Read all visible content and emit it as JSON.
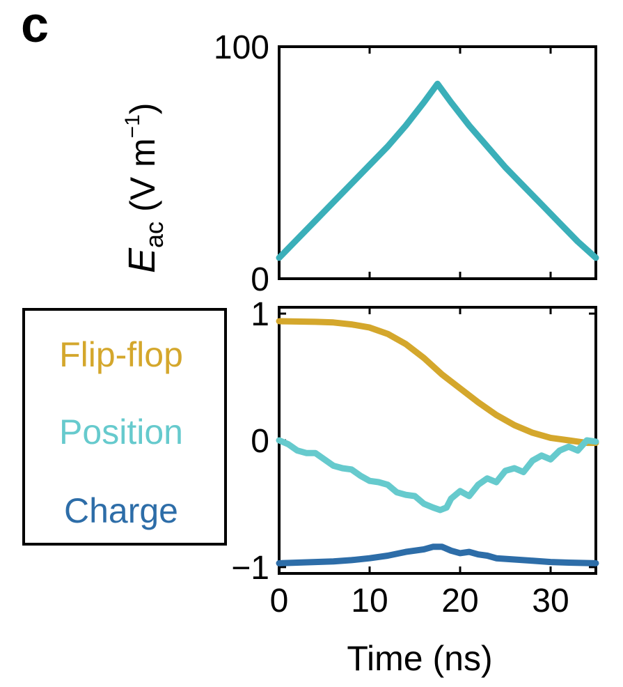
{
  "panel_label": "c",
  "chart_data": [
    {
      "type": "line",
      "name": "field-amplitude",
      "title": "",
      "ylabel": {
        "symbol": "E",
        "subscript": "ac",
        "unit_prefix": "(V m",
        "unit_exponent": "−1",
        "unit_suffix": ")"
      },
      "xlabel": "",
      "xlim": [
        0,
        35
      ],
      "ylim": [
        0,
        100
      ],
      "yticks": [
        0,
        100
      ],
      "ytick_labels": [
        "0",
        "100"
      ],
      "xticks": [
        0,
        10,
        20,
        30
      ],
      "series": [
        {
          "name": "E_ac",
          "color": "#3AAFB9",
          "x": [
            0,
            2,
            4,
            6,
            8,
            10,
            12,
            14,
            16,
            17.5,
            19,
            21,
            23,
            25,
            27,
            29,
            31,
            33,
            35
          ],
          "y": [
            9,
            17,
            25,
            33,
            41,
            49,
            57,
            66,
            76,
            84,
            76,
            66,
            57,
            48,
            40,
            32,
            24,
            16,
            9
          ]
        }
      ]
    },
    {
      "type": "line",
      "name": "normalized-observables",
      "title": "",
      "xlabel": "Time (ns)",
      "ylabel": "",
      "xlim": [
        0,
        35
      ],
      "ylim": [
        -1.05,
        1.05
      ],
      "xticks": [
        0,
        10,
        20,
        30
      ],
      "xtick_labels": [
        "0",
        "10",
        "20",
        "30"
      ],
      "yticks": [
        -1,
        0,
        1
      ],
      "ytick_labels": [
        "−1",
        "0",
        "1"
      ],
      "legend": {
        "location": "left-outside",
        "entries": [
          "Flip-flop",
          "Position",
          "Charge"
        ]
      },
      "series": [
        {
          "name": "Flip-flop",
          "color": "#D4A72C",
          "x": [
            0,
            4,
            6,
            8,
            10,
            12,
            14,
            16,
            18,
            20,
            22,
            24,
            26,
            28,
            30,
            32,
            33,
            34,
            35
          ],
          "y": [
            0.94,
            0.935,
            0.93,
            0.915,
            0.89,
            0.84,
            0.76,
            0.65,
            0.52,
            0.41,
            0.3,
            0.2,
            0.12,
            0.06,
            0.02,
            0.0,
            -0.01,
            -0.02,
            -0.02
          ]
        },
        {
          "name": "Position",
          "color": "#66CACD",
          "x": [
            0,
            1,
            2,
            3,
            4,
            5,
            6,
            7,
            8,
            9,
            10,
            11,
            12,
            13,
            14,
            15,
            16,
            17,
            17.8,
            18.5,
            19,
            20,
            21,
            22,
            23,
            24,
            25,
            26,
            27,
            28,
            29,
            30,
            31,
            32,
            33,
            34,
            35
          ],
          "y": [
            0,
            -0.03,
            -0.08,
            -0.1,
            -0.1,
            -0.15,
            -0.2,
            -0.22,
            -0.23,
            -0.28,
            -0.32,
            -0.33,
            -0.35,
            -0.41,
            -0.43,
            -0.44,
            -0.5,
            -0.53,
            -0.55,
            -0.53,
            -0.46,
            -0.4,
            -0.44,
            -0.35,
            -0.3,
            -0.33,
            -0.24,
            -0.22,
            -0.25,
            -0.16,
            -0.12,
            -0.15,
            -0.08,
            -0.05,
            -0.08,
            0.0,
            -0.01
          ]
        },
        {
          "name": "Charge",
          "color": "#2D6DA8",
          "x": [
            0,
            2,
            4,
            6,
            8,
            10,
            12,
            14,
            16,
            17,
            18,
            19,
            20,
            21,
            22,
            23,
            24,
            26,
            28,
            30,
            32,
            35
          ],
          "y": [
            -0.97,
            -0.965,
            -0.96,
            -0.955,
            -0.945,
            -0.93,
            -0.91,
            -0.88,
            -0.86,
            -0.84,
            -0.84,
            -0.87,
            -0.89,
            -0.88,
            -0.9,
            -0.91,
            -0.93,
            -0.94,
            -0.95,
            -0.96,
            -0.965,
            -0.97
          ]
        }
      ]
    }
  ]
}
